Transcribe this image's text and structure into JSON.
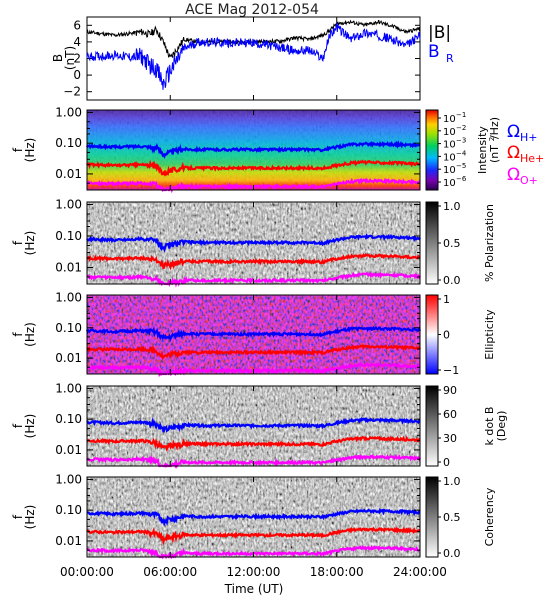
{
  "title": "ACE Mag 2012-054",
  "x_axis": {
    "ticks": [
      "00:00:00",
      "06:00:00",
      "12:00:00",
      "18:00:00",
      "24:00:00"
    ],
    "label": "Time (UT)"
  },
  "panel1": {
    "ylabel_main": "B",
    "ylabel_unit": "(nT)",
    "yticks": [
      "6",
      "4",
      "2",
      "0",
      "−2"
    ],
    "legend_B": "|B|",
    "legend_BR_main": "B",
    "legend_BR_sub": "R",
    "colors": {
      "B": "#000000",
      "BR": "#0000ff"
    }
  },
  "freq_ylabel_main": "f",
  "freq_ylabel_unit": "(Hz)",
  "freq_ticks": [
    "1.00",
    "0.10",
    "0.01"
  ],
  "gyro_legend": {
    "H_symbol": "Ω",
    "H_sub": "H+",
    "H_color": "#0000ff",
    "He_symbol": "Ω",
    "He_sub": "He+",
    "He_color": "#ff0000",
    "O_symbol": "Ω",
    "O_sub": "O+",
    "O_color": "#ff00ff"
  },
  "colorbars": {
    "intensity": {
      "ticks": [
        "10",
        "10",
        "10",
        "10",
        "10",
        "10"
      ],
      "exponents": [
        "−1",
        "−2",
        "−3",
        "−4",
        "−5",
        "−6"
      ],
      "label": "Intensity",
      "unit_main": "(nT",
      "unit_sup": "2",
      "unit_tail": "/Hz)"
    },
    "polarization": {
      "ticks": [
        "1.0",
        "0.5",
        "0.0"
      ],
      "label": "% Polarization"
    },
    "ellipticity": {
      "ticks": [
        "1",
        "0",
        "−1"
      ],
      "label": "Ellipticity"
    },
    "kdotb": {
      "ticks": [
        "90",
        "60",
        "30",
        "0"
      ],
      "label": "k dot B",
      "unit": "(Deg)"
    },
    "coherency": {
      "ticks": [
        "1.0",
        "0.5",
        "0.0"
      ],
      "label": "Coherency"
    }
  },
  "chart_data": [
    {
      "type": "line",
      "panel": "magnetic_field",
      "x": [
        0,
        2,
        3,
        4,
        4.5,
        5,
        5.5,
        6,
        7,
        8,
        10,
        12,
        14,
        15,
        16,
        17,
        17.5,
        18,
        19,
        20,
        21,
        22,
        23,
        24
      ],
      "series": [
        {
          "name": "|B|",
          "values": [
            5.2,
            4.8,
            5.0,
            5.2,
            4.9,
            5.5,
            4.0,
            2.0,
            4.3,
            4.0,
            4.0,
            4.0,
            4.1,
            4.5,
            4.3,
            4.8,
            5.4,
            6.2,
            6.4,
            6.0,
            6.4,
            5.9,
            5.2,
            5.6
          ]
        },
        {
          "name": "B_R",
          "values": [
            2.2,
            2.4,
            2.2,
            2.2,
            1.2,
            0.8,
            -1.2,
            0.5,
            3.2,
            4.0,
            3.9,
            3.9,
            3.3,
            2.9,
            3.0,
            2.0,
            4.8,
            5.8,
            4.3,
            5.1,
            4.8,
            4.3,
            3.5,
            4.8
          ]
        }
      ],
      "ylim": [
        -3,
        7
      ],
      "xlim": [
        0,
        24
      ]
    },
    {
      "type": "line",
      "panel": "gyrofrequencies",
      "x": [
        0,
        2,
        4,
        5,
        5.5,
        6,
        7,
        8,
        10,
        12,
        14,
        16,
        17,
        18,
        19,
        20,
        22,
        24
      ],
      "series": [
        {
          "name": "ΩH+",
          "values": [
            0.08,
            0.075,
            0.08,
            0.07,
            0.045,
            0.05,
            0.065,
            0.062,
            0.062,
            0.062,
            0.062,
            0.062,
            0.06,
            0.075,
            0.09,
            0.095,
            0.092,
            0.085
          ]
        },
        {
          "name": "ΩHe+",
          "values": [
            0.02,
            0.019,
            0.02,
            0.017,
            0.011,
            0.013,
            0.016,
            0.0155,
            0.0155,
            0.0155,
            0.0155,
            0.0155,
            0.015,
            0.019,
            0.0225,
            0.024,
            0.023,
            0.021
          ]
        },
        {
          "name": "ΩO+",
          "values": [
            0.005,
            0.0048,
            0.005,
            0.0043,
            0.0028,
            0.0032,
            0.004,
            0.0039,
            0.0039,
            0.0039,
            0.0039,
            0.0039,
            0.0038,
            0.0047,
            0.0056,
            0.006,
            0.0058,
            0.0053
          ]
        }
      ],
      "yscale": "log",
      "ylim": [
        0.003,
        1.2
      ],
      "xlim": [
        0,
        24
      ]
    }
  ]
}
